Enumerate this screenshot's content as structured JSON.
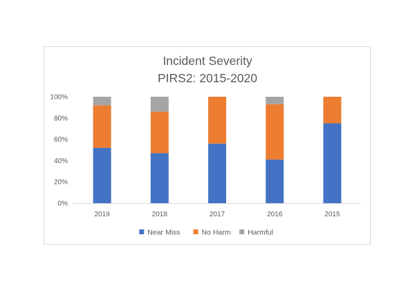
{
  "chart_data": {
    "type": "bar",
    "stacked": true,
    "title": "Incident Severity",
    "subtitle": "PIRS2: 2015-2020",
    "categories": [
      "2019",
      "2018",
      "2017",
      "2016",
      "2015"
    ],
    "series": [
      {
        "name": "Near Miss",
        "color": "#4472c4",
        "values": [
          0.52,
          0.47,
          0.56,
          0.41,
          0.75
        ]
      },
      {
        "name": "No Harm",
        "color": "#ed7d31",
        "values": [
          0.4,
          0.39,
          0.44,
          0.52,
          0.25
        ]
      },
      {
        "name": "Harmful",
        "color": "#a5a5a5",
        "values": [
          0.08,
          0.14,
          0.0,
          0.07,
          0.0
        ]
      }
    ],
    "yticks": [
      "0%",
      "20%",
      "40%",
      "60%",
      "80%",
      "100%"
    ],
    "ylim": [
      0,
      1
    ],
    "grid": false,
    "legend_position": "bottom"
  }
}
